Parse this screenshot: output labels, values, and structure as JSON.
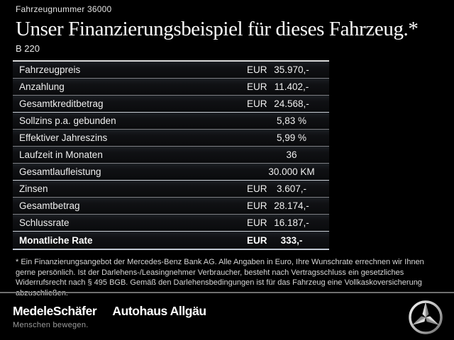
{
  "header": {
    "vehicle_number": "Fahrzeugnummer 36000",
    "title": "Unser Finanzierungsbeispiel für dieses Fahrzeug.*",
    "model": "B 220"
  },
  "table": {
    "rows": [
      {
        "label": "Fahrzeugpreis",
        "currency": "EUR",
        "value": "35.970,-",
        "bold": false,
        "section_end": false
      },
      {
        "label": "Anzahlung",
        "currency": "EUR",
        "value": "11.402,-",
        "bold": false,
        "section_end": false
      },
      {
        "label": "Gesamtkreditbetrag",
        "currency": "EUR",
        "value": "24.568,-",
        "bold": false,
        "section_end": true
      },
      {
        "label": "Sollzins p.a. gebunden",
        "currency": "",
        "value": "5,83 %",
        "bold": false,
        "section_end": false
      },
      {
        "label": "Effektiver Jahreszins",
        "currency": "",
        "value": "5,99 %",
        "bold": false,
        "section_end": false
      },
      {
        "label": "Laufzeit in Monaten",
        "currency": "",
        "value": "36",
        "bold": false,
        "section_end": false
      },
      {
        "label": "Gesamtlaufleistung",
        "currency": "",
        "value": "30.000 KM",
        "bold": false,
        "section_end": true
      },
      {
        "label": "Zinsen",
        "currency": "EUR",
        "value": "3.607,-",
        "bold": false,
        "section_end": false
      },
      {
        "label": "Gesamtbetrag",
        "currency": "EUR",
        "value": "28.174,-",
        "bold": false,
        "section_end": false
      },
      {
        "label": "Schlussrate",
        "currency": "EUR",
        "value": "16.187,-",
        "bold": false,
        "section_end": true
      },
      {
        "label": "Monatliche Rate",
        "currency": "EUR",
        "value": "333,-",
        "bold": true,
        "section_end": false
      }
    ]
  },
  "footnote": "* Ein Finanzierungsangebot der Mercedes-Benz Bank AG. Alle Angaben in Euro, Ihre Wunschrate errechnen wir Ihnen gerne persönlich. Ist der Darlehens-/Leasingnehmer Verbraucher, besteht nach Vertragsschluss ein gesetzliches Widerrufsrecht nach § 495 BGB. Gemäß den Darlehensbedingungen ist für das Fahrzeug eine Vollkaskoversicherung abzuschließen.",
  "footer": {
    "dealer_logo": "MedeleSchäfer",
    "dealer_tagline": "Menschen bewegen.",
    "dealer_secondary_logo": "Autohaus Allgäu",
    "brand_icon": "mercedes-star-icon"
  },
  "colors": {
    "background": "#000000",
    "text": "#f2f2f2",
    "row_separator": "#7d7f83",
    "table_border": "#d9d9d9",
    "footer_divider": "#6f6f6f",
    "tagline_gray": "#9c9c9c",
    "star_silver_light": "#f0f0f0",
    "star_silver_dark": "#8a8a8a"
  }
}
